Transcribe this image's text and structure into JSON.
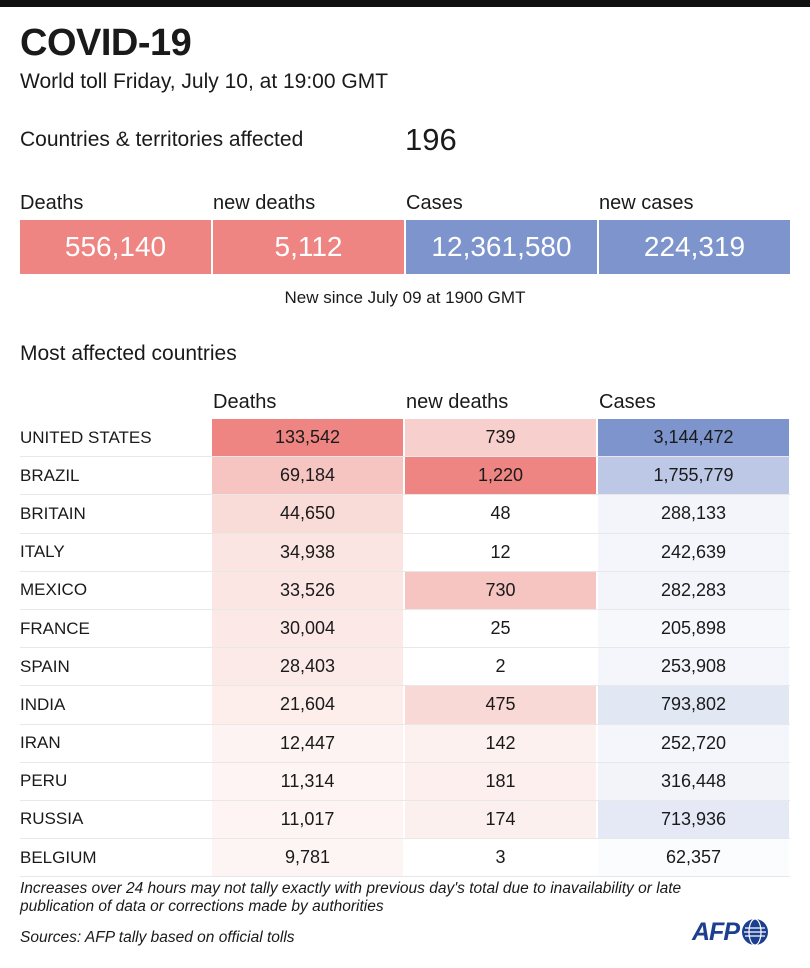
{
  "header": {
    "title": "COVID-19",
    "subtitle": "World toll Friday, July 10, at 19:00 GMT"
  },
  "affected": {
    "label": "Countries & territories affected",
    "value": "196"
  },
  "totals": [
    {
      "label": "Deaths",
      "value": "556,140",
      "color": "#ee8582"
    },
    {
      "label": "new deaths",
      "value": "5,112",
      "color": "#ee8582"
    },
    {
      "label": "Cases",
      "value": "12,361,580",
      "color": "#7d94cc"
    },
    {
      "label": "new cases",
      "value": "224,319",
      "color": "#7d94cc"
    }
  ],
  "since_note": "New since  July 09 at 1900 GMT",
  "table": {
    "title": "Most affected countries",
    "columns": [
      "Deaths",
      "new deaths",
      "Cases"
    ],
    "rows": [
      {
        "country": "UNITED STATES",
        "deaths": "133,542",
        "new_deaths": "739",
        "cases": "3,144,472",
        "deaths_bg": "#ee8582",
        "new_bg": "#f7cfcc",
        "cases_bg": "#7d94cc"
      },
      {
        "country": "BRAZIL",
        "deaths": "69,184",
        "new_deaths": "1,220",
        "cases": "1,755,779",
        "deaths_bg": "#f6c4c1",
        "new_bg": "#ee8582",
        "cases_bg": "#bcc8e6"
      },
      {
        "country": "BRITAIN",
        "deaths": "44,650",
        "new_deaths": "48",
        "cases": "288,133",
        "deaths_bg": "#f9dbd8",
        "new_bg": "#ffffff",
        "cases_bg": "#f3f5fb"
      },
      {
        "country": "ITALY",
        "deaths": "34,938",
        "new_deaths": "12",
        "cases": "242,639",
        "deaths_bg": "#fbe5e3",
        "new_bg": "#ffffff",
        "cases_bg": "#f5f6fb"
      },
      {
        "country": "MEXICO",
        "deaths": "33,526",
        "new_deaths": "730",
        "cases": "282,283",
        "deaths_bg": "#fbe6e4",
        "new_bg": "#f6c4c1",
        "cases_bg": "#f4f5fb"
      },
      {
        "country": "FRANCE",
        "deaths": "30,004",
        "new_deaths": "25",
        "cases": "205,898",
        "deaths_bg": "#fce9e7",
        "new_bg": "#ffffff",
        "cases_bg": "#f7f8fc"
      },
      {
        "country": "SPAIN",
        "deaths": "28,403",
        "new_deaths": "2",
        "cases": "253,908",
        "deaths_bg": "#fceae8",
        "new_bg": "#ffffff",
        "cases_bg": "#f5f6fb"
      },
      {
        "country": "INDIA",
        "deaths": "21,604",
        "new_deaths": "475",
        "cases": "793,802",
        "deaths_bg": "#fdeeec",
        "new_bg": "#f9d9d6",
        "cases_bg": "#e2e7f4"
      },
      {
        "country": "IRAN",
        "deaths": "12,447",
        "new_deaths": "142",
        "cases": "252,720",
        "deaths_bg": "#fdf3f2",
        "new_bg": "#fdf1f0",
        "cases_bg": "#f5f6fb"
      },
      {
        "country": "PERU",
        "deaths": "11,314",
        "new_deaths": "181",
        "cases": "316,448",
        "deaths_bg": "#fdf4f3",
        "new_bg": "#fcefee",
        "cases_bg": "#f2f4fa"
      },
      {
        "country": "RUSSIA",
        "deaths": "11,017",
        "new_deaths": "174",
        "cases": "713,936",
        "deaths_bg": "#fdf4f3",
        "new_bg": "#fcf0ef",
        "cases_bg": "#e5e9f5"
      },
      {
        "country": "BELGIUM",
        "deaths": "9,781",
        "new_deaths": "3",
        "cases": "62,357",
        "deaths_bg": "#fdf5f4",
        "new_bg": "#ffffff",
        "cases_bg": "#fbfcfe"
      }
    ]
  },
  "footnote": "Increases over 24 hours may not tally exactly with previous day's total due to inavailability or late publication of data or corrections made by authorities",
  "sources": "Sources: AFP tally based on official tolls",
  "logo": {
    "text": "AFP",
    "icon": "globe-icon",
    "color": "#1d3f8f"
  }
}
